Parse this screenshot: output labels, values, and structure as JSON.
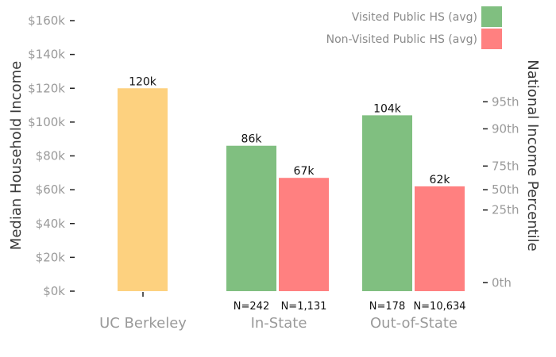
{
  "chart_data": {
    "type": "bar",
    "ylabel": "Median Household Income",
    "ylabel_right": "National Income Percentile",
    "ylim": [
      0,
      160000
    ],
    "y_ticks": [
      {
        "value": 0,
        "label": "$0k"
      },
      {
        "value": 20000,
        "label": "$20k"
      },
      {
        "value": 40000,
        "label": "$40k"
      },
      {
        "value": 60000,
        "label": "$60k"
      },
      {
        "value": 80000,
        "label": "$80k"
      },
      {
        "value": 100000,
        "label": "$100k"
      },
      {
        "value": 120000,
        "label": "$120k"
      },
      {
        "value": 140000,
        "label": "$140k"
      },
      {
        "value": 160000,
        "label": "$160k"
      }
    ],
    "right_ticks": [
      {
        "value": 5000,
        "label": "0th"
      },
      {
        "value": 48000,
        "label": "25th"
      },
      {
        "value": 60000,
        "label": "50th"
      },
      {
        "value": 74000,
        "label": "75th"
      },
      {
        "value": 96000,
        "label": "90th"
      },
      {
        "value": 112000,
        "label": "95th"
      }
    ],
    "categories": [
      "UC Berkeley",
      "In-State",
      "Out-of-State"
    ],
    "legend": {
      "position": "top-right",
      "entries": [
        {
          "label": "Visited Public HS (avg)",
          "color": "#80bf80"
        },
        {
          "label": "Non-Visited Public HS (avg)",
          "color": "#ff8080"
        }
      ]
    },
    "bars": [
      {
        "category": "UC Berkeley",
        "value": 120000,
        "label": "120k",
        "color": "#fdd17f",
        "n": ""
      },
      {
        "category": "In-State",
        "series": "Visited Public HS (avg)",
        "value": 86000,
        "label": "86k",
        "color": "#80bf80",
        "n": "N=242"
      },
      {
        "category": "In-State",
        "series": "Non-Visited Public HS (avg)",
        "value": 67000,
        "label": "67k",
        "color": "#ff8080",
        "n": "N=1,131"
      },
      {
        "category": "Out-of-State",
        "series": "Visited Public HS (avg)",
        "value": 104000,
        "label": "104k",
        "color": "#80bf80",
        "n": "N=178"
      },
      {
        "category": "Out-of-State",
        "series": "Non-Visited Public HS (avg)",
        "value": 62000,
        "label": "62k",
        "color": "#ff8080",
        "n": "N=10,634"
      }
    ],
    "grid": false
  }
}
